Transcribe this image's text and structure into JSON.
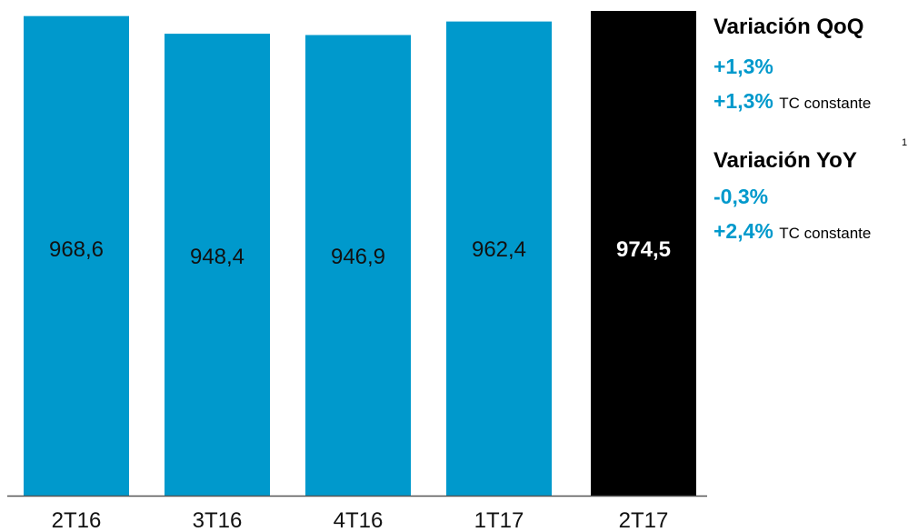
{
  "chart_data": {
    "type": "bar",
    "categories": [
      "2T16",
      "3T16",
      "4T16",
      "1T17",
      "2T17"
    ],
    "values": [
      968.6,
      948.4,
      946.9,
      962.4,
      974.5
    ],
    "value_labels": [
      "968,6",
      "948,4",
      "946,9",
      "962,4",
      "974,5"
    ],
    "highlight_index": 4,
    "title": "",
    "xlabel": "",
    "ylabel": "",
    "grid": false,
    "colors": {
      "bar": "#0099CC",
      "highlight": "#000000",
      "axis": "#555555"
    }
  },
  "variations": {
    "qoq": {
      "title": "Variación QoQ",
      "value1": "+1,3%",
      "value2": "+1,3%",
      "value2_note": "TC constante"
    },
    "yoy": {
      "title": "Variación YoY",
      "footnote": "1",
      "value1": "-0,3%",
      "value2": "+2,4%",
      "value2_note": "TC constante"
    },
    "accent_color": "#0099CC"
  }
}
